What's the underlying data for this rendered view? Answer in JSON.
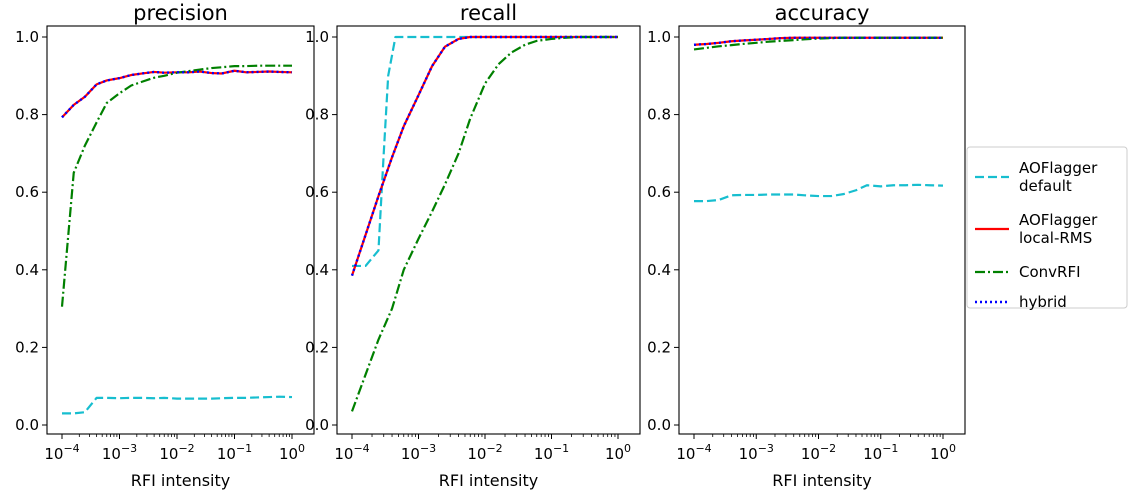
{
  "chart_data": [
    {
      "type": "line",
      "title": "precision",
      "xlabel": "RFI intensity",
      "ylabel": "",
      "xscale": "log",
      "xlim": [
        0.0001,
        1
      ],
      "ylim": [
        0,
        1
      ],
      "xticks": [
        "10",
        "10",
        "10",
        "10",
        "10"
      ],
      "xtick_exps": [
        "−4",
        "−3",
        "−2",
        "−1",
        "0"
      ],
      "yticks": [
        "0.0",
        "0.2",
        "0.4",
        "0.6",
        "0.8",
        "1.0"
      ],
      "grid": false,
      "series": [
        {
          "name": "AOFlagger default",
          "color": "#17becf",
          "dash": "dashed",
          "x": [
            0.0001,
            0.00016,
            0.00025,
            0.0004,
            0.0006,
            0.001,
            0.0016,
            0.0025,
            0.004,
            0.006,
            0.01,
            0.016,
            0.025,
            0.04,
            0.06,
            0.1,
            0.16,
            0.25,
            0.4,
            0.6,
            1
          ],
          "y": [
            0.03,
            0.03,
            0.033,
            0.07,
            0.07,
            0.069,
            0.07,
            0.07,
            0.069,
            0.07,
            0.068,
            0.068,
            0.068,
            0.068,
            0.069,
            0.07,
            0.07,
            0.071,
            0.072,
            0.073,
            0.072
          ]
        },
        {
          "name": "AOFlagger local-RMS",
          "color": "#ff0000",
          "dash": "solid",
          "x": [
            0.0001,
            0.00016,
            0.00025,
            0.0004,
            0.0006,
            0.001,
            0.0016,
            0.0025,
            0.004,
            0.006,
            0.01,
            0.016,
            0.025,
            0.04,
            0.06,
            0.1,
            0.16,
            0.25,
            0.4,
            0.6,
            1
          ],
          "y": [
            0.793,
            0.825,
            0.846,
            0.878,
            0.888,
            0.894,
            0.902,
            0.906,
            0.91,
            0.908,
            0.909,
            0.909,
            0.911,
            0.907,
            0.906,
            0.913,
            0.909,
            0.91,
            0.911,
            0.91,
            0.909
          ]
        },
        {
          "name": "ConvRFI",
          "color": "#008000",
          "dash": "dashdot",
          "x": [
            0.0001,
            0.00016,
            0.00025,
            0.0004,
            0.0006,
            0.001,
            0.0016,
            0.0025,
            0.004,
            0.006,
            0.01,
            0.016,
            0.025,
            0.04,
            0.06,
            0.1,
            0.16,
            0.25,
            0.4,
            0.6,
            1
          ],
          "y": [
            0.305,
            0.65,
            0.72,
            0.78,
            0.83,
            0.855,
            0.875,
            0.885,
            0.895,
            0.9,
            0.908,
            0.912,
            0.916,
            0.92,
            0.922,
            0.925,
            0.925,
            0.926,
            0.926,
            0.926,
            0.926
          ]
        },
        {
          "name": "hybrid",
          "color": "#0000ff",
          "dash": "dotted",
          "x": [
            0.0001,
            0.00016,
            0.00025,
            0.0004,
            0.0006,
            0.001,
            0.0016,
            0.0025,
            0.004,
            0.006,
            0.01,
            0.016,
            0.025,
            0.04,
            0.06,
            0.1,
            0.16,
            0.25,
            0.4,
            0.6,
            1
          ],
          "y": [
            0.793,
            0.825,
            0.846,
            0.878,
            0.888,
            0.894,
            0.902,
            0.906,
            0.91,
            0.908,
            0.909,
            0.909,
            0.911,
            0.907,
            0.906,
            0.913,
            0.909,
            0.91,
            0.911,
            0.91,
            0.909
          ]
        }
      ]
    },
    {
      "type": "line",
      "title": "recall",
      "xlabel": "RFI intensity",
      "ylabel": "",
      "xscale": "log",
      "xlim": [
        0.0001,
        1
      ],
      "ylim": [
        0,
        1
      ],
      "xticks": [
        "10",
        "10",
        "10",
        "10",
        "10"
      ],
      "xtick_exps": [
        "−4",
        "−3",
        "−2",
        "−1",
        "0"
      ],
      "yticks": [
        "0.0",
        "0.2",
        "0.4",
        "0.6",
        "0.8",
        "1.0"
      ],
      "grid": false,
      "series": [
        {
          "name": "AOFlagger default",
          "color": "#17becf",
          "dash": "dashed",
          "x": [
            0.0001,
            0.00016,
            0.00025,
            0.0003,
            0.00035,
            0.00045,
            0.0006,
            0.001,
            0.0016,
            0.0025,
            0.004,
            0.006,
            0.01,
            0.025,
            0.06,
            0.1,
            0.25,
            1
          ],
          "y": [
            0.41,
            0.41,
            0.45,
            0.7,
            0.9,
            1.0,
            1.0,
            1.0,
            1.0,
            1.0,
            1.0,
            1.0,
            1.0,
            1.0,
            1.0,
            1.0,
            1.0,
            1.0
          ]
        },
        {
          "name": "AOFlagger local-RMS",
          "color": "#ff0000",
          "dash": "solid",
          "x": [
            0.0001,
            0.00016,
            0.00025,
            0.0004,
            0.0006,
            0.001,
            0.0016,
            0.0025,
            0.004,
            0.006,
            0.01,
            0.016,
            0.025,
            0.06,
            0.1,
            0.25,
            1
          ],
          "y": [
            0.385,
            0.49,
            0.59,
            0.69,
            0.77,
            0.85,
            0.925,
            0.975,
            0.995,
            1.0,
            1.0,
            1.0,
            1.0,
            1.0,
            1.0,
            1.0,
            1.0
          ]
        },
        {
          "name": "ConvRFI",
          "color": "#008000",
          "dash": "dashdot",
          "x": [
            0.0001,
            0.00016,
            0.00025,
            0.0004,
            0.0006,
            0.001,
            0.0016,
            0.0025,
            0.004,
            0.006,
            0.01,
            0.016,
            0.025,
            0.04,
            0.06,
            0.1,
            0.16,
            0.25,
            0.4,
            1
          ],
          "y": [
            0.035,
            0.13,
            0.22,
            0.3,
            0.4,
            0.48,
            0.55,
            0.62,
            0.7,
            0.79,
            0.88,
            0.93,
            0.96,
            0.98,
            0.99,
            0.995,
            0.998,
            1.0,
            1.0,
            1.0
          ]
        },
        {
          "name": "hybrid",
          "color": "#0000ff",
          "dash": "dotted",
          "x": [
            0.0001,
            0.00016,
            0.00025,
            0.0004,
            0.0006,
            0.001,
            0.0016,
            0.0025,
            0.004,
            0.006,
            0.01,
            0.016,
            0.025,
            0.06,
            0.1,
            0.25,
            1
          ],
          "y": [
            0.385,
            0.49,
            0.59,
            0.69,
            0.77,
            0.85,
            0.925,
            0.975,
            0.995,
            1.0,
            1.0,
            1.0,
            1.0,
            1.0,
            1.0,
            1.0,
            1.0
          ]
        }
      ]
    },
    {
      "type": "line",
      "title": "accuracy",
      "xlabel": "RFI intensity",
      "ylabel": "",
      "xscale": "log",
      "xlim": [
        0.0001,
        1
      ],
      "ylim": [
        0,
        1
      ],
      "xticks": [
        "10",
        "10",
        "10",
        "10",
        "10"
      ],
      "xtick_exps": [
        "−4",
        "−3",
        "−2",
        "−1",
        "0"
      ],
      "yticks": [
        "0.0",
        "0.2",
        "0.4",
        "0.6",
        "0.8",
        "1.0"
      ],
      "grid": false,
      "series": [
        {
          "name": "AOFlagger default",
          "color": "#17becf",
          "dash": "dashed",
          "x": [
            0.0001,
            0.00016,
            0.00025,
            0.0004,
            0.0006,
            0.001,
            0.0016,
            0.0025,
            0.004,
            0.006,
            0.01,
            0.016,
            0.025,
            0.04,
            0.06,
            0.1,
            0.16,
            0.25,
            0.4,
            0.6,
            1
          ],
          "y": [
            0.577,
            0.577,
            0.58,
            0.592,
            0.593,
            0.593,
            0.594,
            0.594,
            0.594,
            0.592,
            0.59,
            0.59,
            0.595,
            0.605,
            0.618,
            0.615,
            0.618,
            0.618,
            0.619,
            0.618,
            0.617
          ]
        },
        {
          "name": "AOFlagger local-RMS",
          "color": "#ff0000",
          "dash": "solid",
          "x": [
            0.0001,
            0.00016,
            0.00025,
            0.0004,
            0.0006,
            0.001,
            0.0016,
            0.0025,
            0.004,
            0.006,
            0.01,
            0.025,
            0.06,
            0.1,
            0.25,
            1
          ],
          "y": [
            0.98,
            0.982,
            0.985,
            0.989,
            0.991,
            0.993,
            0.995,
            0.997,
            0.998,
            0.998,
            0.998,
            0.998,
            0.998,
            0.998,
            0.998,
            0.998
          ]
        },
        {
          "name": "ConvRFI",
          "color": "#008000",
          "dash": "dashdot",
          "x": [
            0.0001,
            0.00016,
            0.00025,
            0.0004,
            0.0006,
            0.001,
            0.0016,
            0.0025,
            0.004,
            0.006,
            0.01,
            0.016,
            0.025,
            0.06,
            0.1,
            0.25,
            1
          ],
          "y": [
            0.968,
            0.972,
            0.976,
            0.979,
            0.982,
            0.985,
            0.988,
            0.99,
            0.992,
            0.994,
            0.996,
            0.997,
            0.998,
            0.998,
            0.998,
            0.998,
            0.998
          ]
        },
        {
          "name": "hybrid",
          "color": "#0000ff",
          "dash": "dotted",
          "x": [
            0.0001,
            0.00016,
            0.00025,
            0.0004,
            0.0006,
            0.001,
            0.0016,
            0.0025,
            0.004,
            0.006,
            0.01,
            0.025,
            0.06,
            0.1,
            0.25,
            1
          ],
          "y": [
            0.98,
            0.982,
            0.985,
            0.989,
            0.991,
            0.993,
            0.995,
            0.997,
            0.998,
            0.998,
            0.998,
            0.998,
            0.998,
            0.998,
            0.998,
            0.998
          ]
        }
      ]
    }
  ],
  "legend": {
    "placement": "right",
    "entries": [
      {
        "lines": [
          "AOFlagger",
          "default"
        ],
        "color": "#17becf",
        "dash": "dashed"
      },
      {
        "lines": [
          "AOFlagger",
          "local-RMS"
        ],
        "color": "#ff0000",
        "dash": "solid"
      },
      {
        "lines": [
          "ConvRFI"
        ],
        "color": "#008000",
        "dash": "dashdot"
      },
      {
        "lines": [
          "hybrid"
        ],
        "color": "#0000ff",
        "dash": "dotted"
      }
    ]
  }
}
